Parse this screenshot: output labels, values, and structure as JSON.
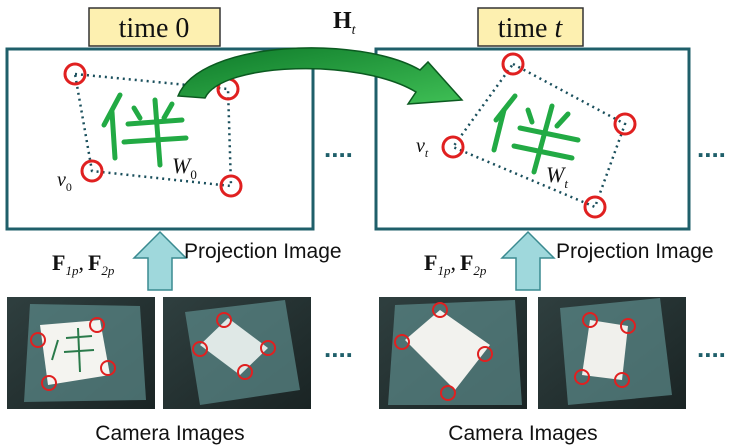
{
  "time0_label": {
    "word": "time",
    "value": "0"
  },
  "timet_label": {
    "word": "time",
    "value": "t"
  },
  "transform_label": {
    "letter": "H",
    "sub": "t"
  },
  "vertex_label_0": {
    "letter": "v",
    "sub": "0"
  },
  "vertex_label_t": {
    "letter": "v",
    "sub": "t"
  },
  "window_label_0": {
    "letter": "W",
    "sub": "0"
  },
  "window_label_t": {
    "letter": "W",
    "sub": "t"
  },
  "matrix_label": {
    "f1": "F",
    "f1_sub": "1p",
    "sep": ",",
    "f2": "F",
    "f2_sub": "2p"
  },
  "projection_image_label": "Projection Image",
  "camera_images_label": "Camera Images",
  "handwritten_char": "伴",
  "ellipsis": "....",
  "colors": {
    "label_box_fill": "#fdf0b0",
    "frame_stroke": "#1f5f6a",
    "marker_red": "#e02020",
    "handwriting_green": "#22aa44",
    "arrow_green": "#1f9a3a",
    "up_arrow_fill": "#9fd8dc",
    "dotted_edge": "#1a4f5c"
  }
}
